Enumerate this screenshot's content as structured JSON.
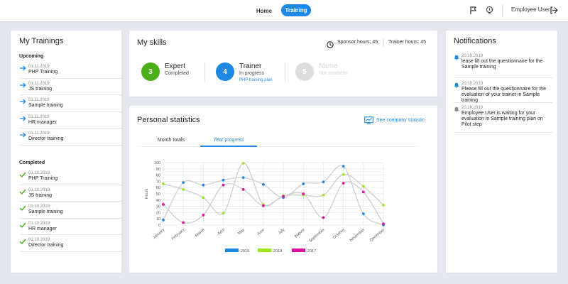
{
  "nav": {
    "home_label": "Home",
    "training_label": "Training",
    "user_name": "Employee User",
    "accent": "#1e88e5"
  },
  "trainings": {
    "title": "My Trainings",
    "upcoming_label": "Upcoming",
    "upcoming": [
      {
        "date": "01.11.2019",
        "name": "PHP Training",
        "icon": "arrow-right-icon"
      },
      {
        "date": "01.11.2019",
        "name": "JS training",
        "icon": "arrow-right-icon"
      },
      {
        "date": "01.11.2019",
        "name": "Sample training",
        "icon": "arrow-right-icon"
      },
      {
        "date": "01.11.2019",
        "name": "HR manager",
        "icon": "arrow-right-icon"
      },
      {
        "date": "01.11.2019",
        "name": "Director training",
        "icon": "arrow-right-icon"
      }
    ],
    "completed_label": "Completed",
    "completed": [
      {
        "date": "01.10.2019",
        "name": "PHP Training",
        "icon": "checkmark-icon"
      },
      {
        "date": "01.10.2019",
        "name": "JS training",
        "icon": "checkmark-icon"
      },
      {
        "date": "01.10.2019",
        "name": "Sample training",
        "icon": "checkmark-icon"
      },
      {
        "date": "01.10.2019",
        "name": "HR manager",
        "icon": "checkmark-icon"
      },
      {
        "date": "01.10.2019",
        "name": "Director training",
        "icon": "checkmark-icon"
      }
    ]
  },
  "skills": {
    "title": "My skills",
    "sponsor_hours": "Sponsor hours: 45",
    "trainer_hours": "Trainer hours: 45",
    "items": [
      {
        "number": "3",
        "title": "Expert",
        "subtitle": "Completed",
        "color": "#4caf1a"
      },
      {
        "number": "4",
        "title": "Trainer",
        "subtitle": "In progress",
        "link": "PHP training plan",
        "color": "#1e88e5"
      },
      {
        "number": "5",
        "title": "Name",
        "subtitle": "Not available",
        "color": "#dddddd"
      }
    ]
  },
  "statistics": {
    "title": "Personal statistics",
    "company_link": "See company statistic",
    "tabs": [
      {
        "label": "Month totals",
        "active": false
      },
      {
        "label": "Year progress",
        "active": true
      }
    ]
  },
  "chart_data": {
    "type": "line",
    "ylabel": "Hours",
    "ylim": [
      0,
      100
    ],
    "yticks": [
      "0",
      "10",
      "20",
      "30",
      "40",
      "50",
      "60",
      "70",
      "80",
      "90",
      "100"
    ],
    "categories": [
      "January",
      "February",
      "March",
      "April",
      "May",
      "June",
      "July",
      "August",
      "September",
      "October",
      "November",
      "December"
    ],
    "grid": true,
    "legend_position": "bottom",
    "series": [
      {
        "name": "2019",
        "color": "#1e88e5",
        "values": [
          8,
          68,
          64,
          72,
          76,
          65,
          44,
          66,
          69,
          94,
          18,
          0
        ]
      },
      {
        "name": "2018",
        "color": "#9ee51e",
        "values": [
          66,
          57,
          44,
          19,
          99,
          33,
          47,
          48,
          48,
          81,
          62,
          32
        ]
      },
      {
        "name": "2017",
        "color": "#e0119f",
        "values": [
          33,
          4,
          16,
          64,
          57,
          31,
          46,
          50,
          12,
          67,
          53,
          2
        ]
      }
    ]
  },
  "notifications": {
    "title": "Notifications",
    "items": [
      {
        "date": "20.10.2019",
        "text": "lease fill out the questionnaire for the Sample training",
        "icon": "bell-icon",
        "icon_color": "#1e88e5"
      },
      {
        "date": "20.10.2019",
        "text": "Please fill out the questionnaire for the evaluation of your trainer in Sample training",
        "icon": "bell-icon",
        "icon_color": "#1e88e5"
      },
      {
        "date": "20.10.2019",
        "text": "Employee User is waiting for your evaluation in Sample training plan on Pilot step",
        "icon": "bell-icon",
        "icon_color": "#8a8a8a"
      }
    ]
  }
}
